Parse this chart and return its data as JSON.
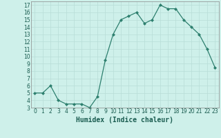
{
  "x": [
    0,
    1,
    2,
    3,
    4,
    5,
    6,
    7,
    8,
    9,
    10,
    11,
    12,
    13,
    14,
    15,
    16,
    17,
    18,
    19,
    20,
    21,
    22,
    23
  ],
  "y": [
    5,
    5,
    6,
    4,
    3.5,
    3.5,
    3.5,
    3,
    4.5,
    9.5,
    13,
    15,
    15.5,
    16,
    14.5,
    15,
    17,
    16.5,
    16.5,
    15,
    14,
    13,
    11,
    8.5
  ],
  "xlabel": "Humidex (Indice chaleur)",
  "line_color": "#2d7f6e",
  "marker": "D",
  "marker_size": 2,
  "bg_color": "#cef0ea",
  "grid_color": "#b8ddd7",
  "ylim": [
    3,
    17.5
  ],
  "xlim": [
    -0.5,
    23.5
  ],
  "yticks": [
    3,
    4,
    5,
    6,
    7,
    8,
    9,
    10,
    11,
    12,
    13,
    14,
    15,
    16,
    17
  ],
  "xticks": [
    0,
    1,
    2,
    3,
    4,
    5,
    6,
    7,
    8,
    9,
    10,
    11,
    12,
    13,
    14,
    15,
    16,
    17,
    18,
    19,
    20,
    21,
    22,
    23
  ],
  "xlabel_fontsize": 7,
  "tick_fontsize": 5.5
}
